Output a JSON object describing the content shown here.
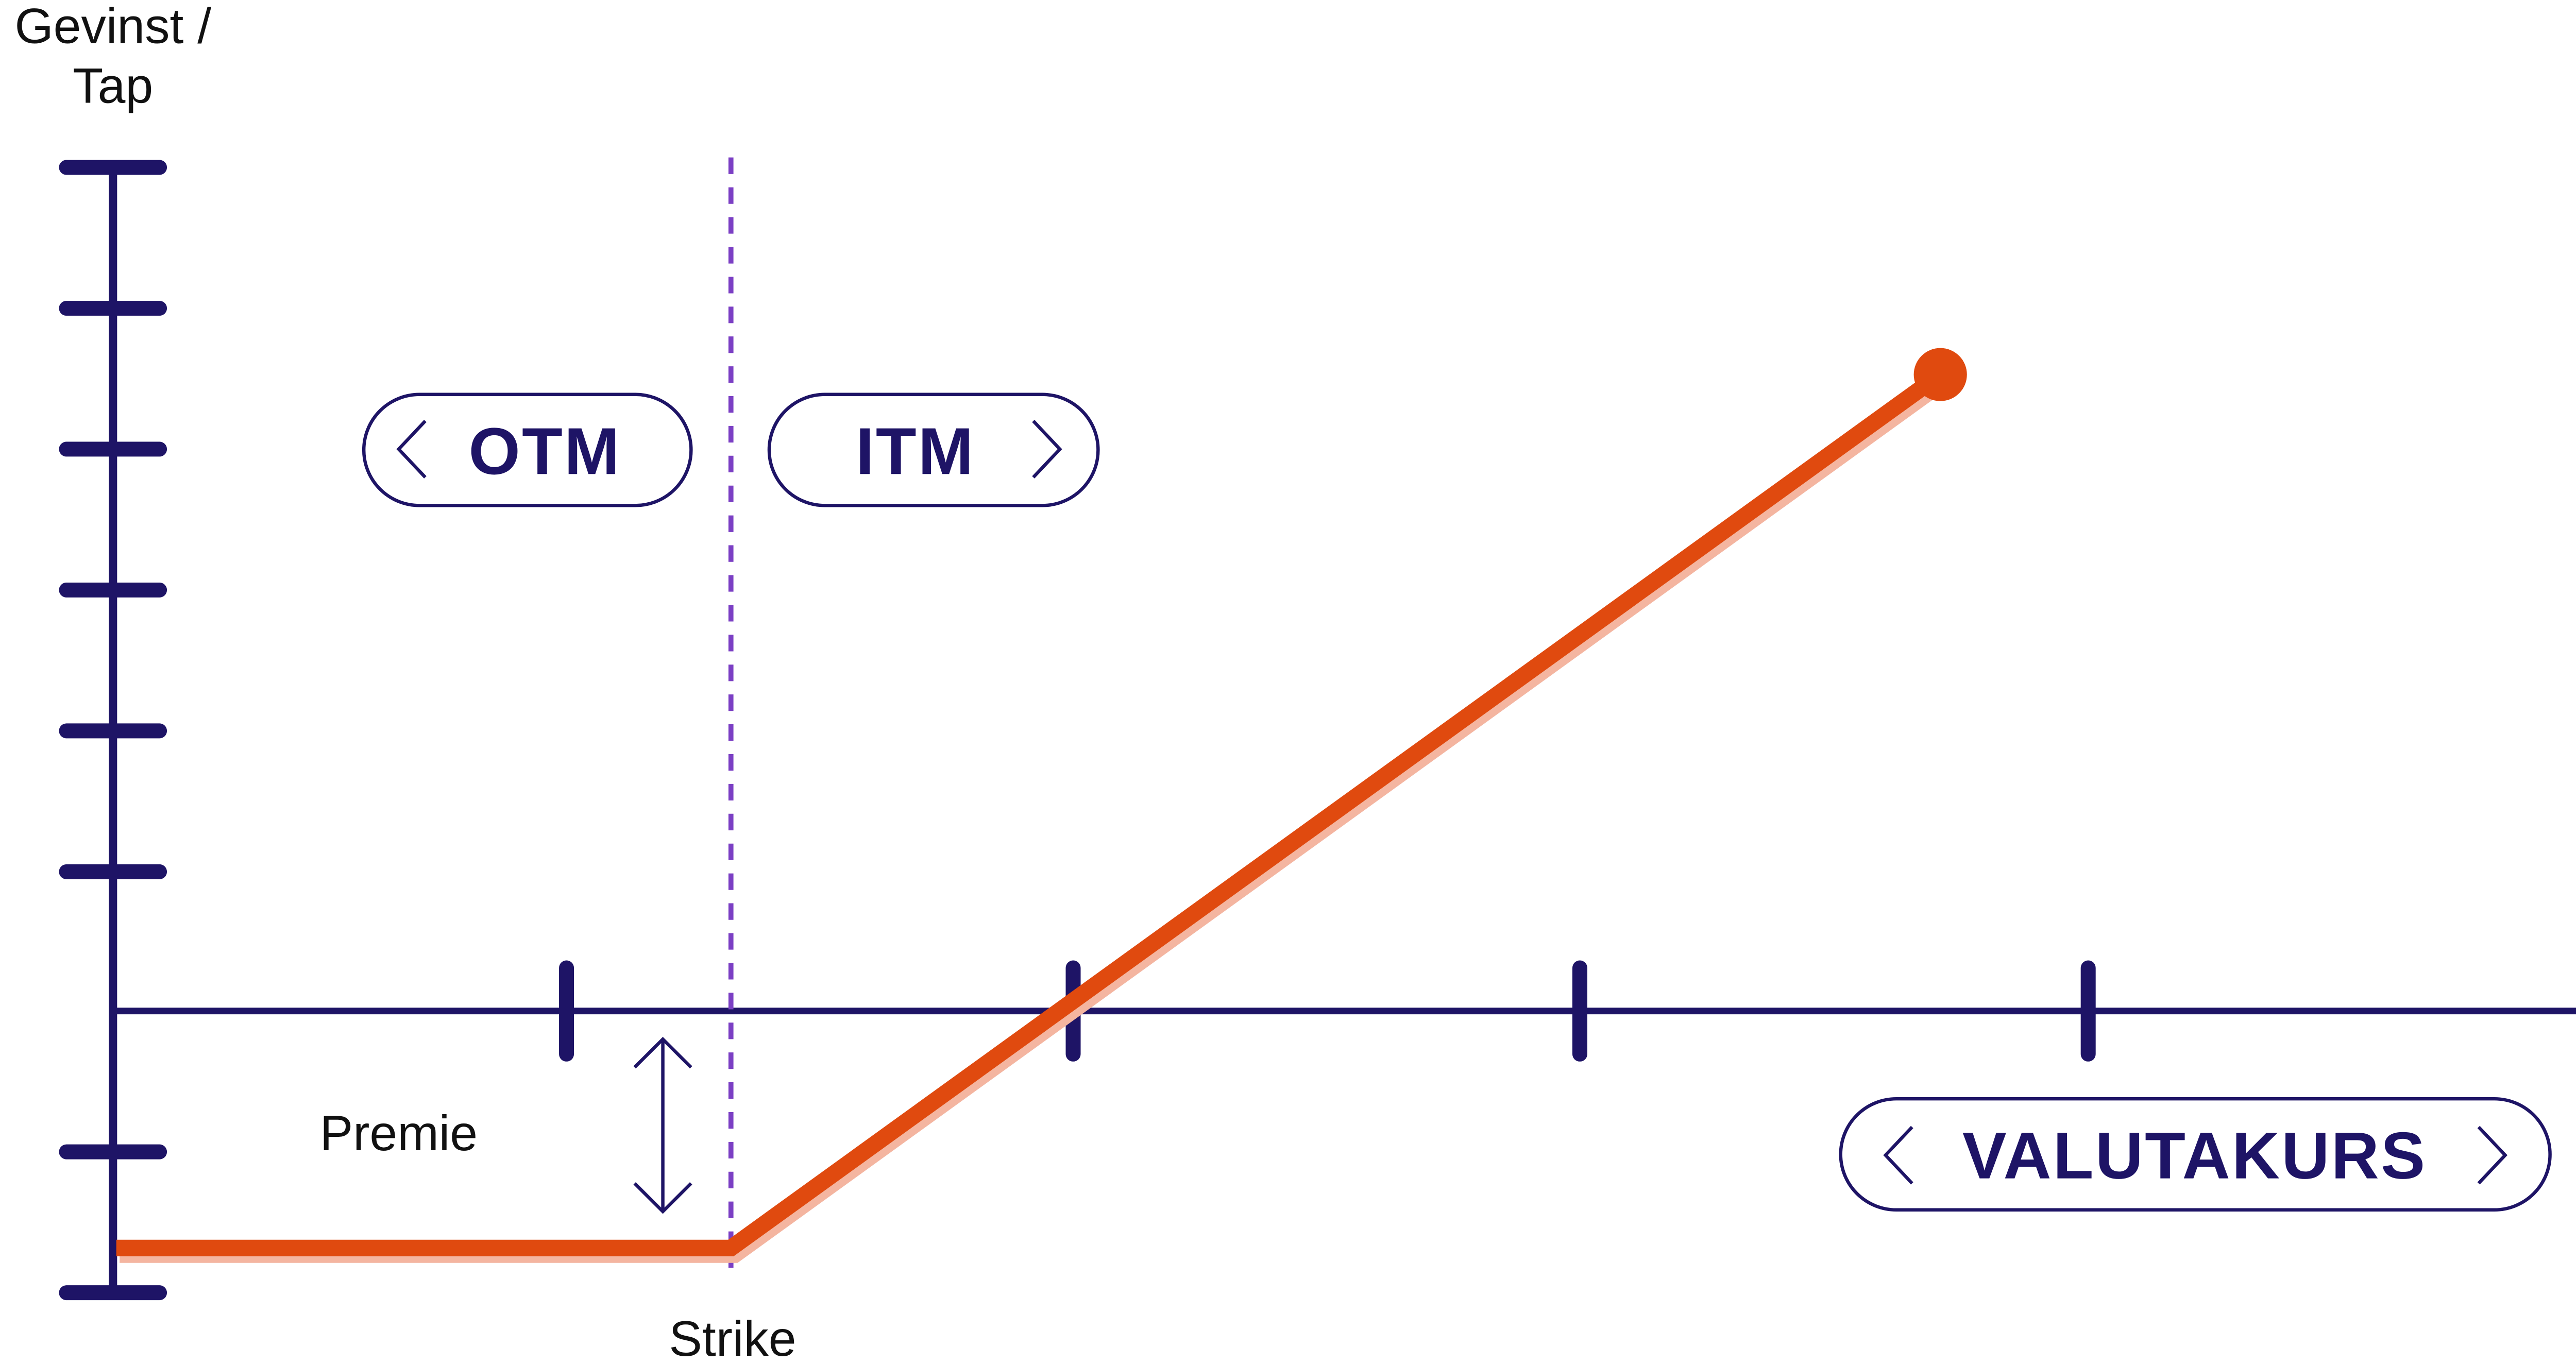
{
  "y_axis": {
    "label_lines": [
      "Gevinst /",
      "Tap"
    ]
  },
  "zones": {
    "otm": "OTM",
    "itm": "ITM"
  },
  "x_axis": {
    "label": "VALUTAKURS"
  },
  "annotations": {
    "premium": "Premie",
    "strike": "Strike"
  }
}
